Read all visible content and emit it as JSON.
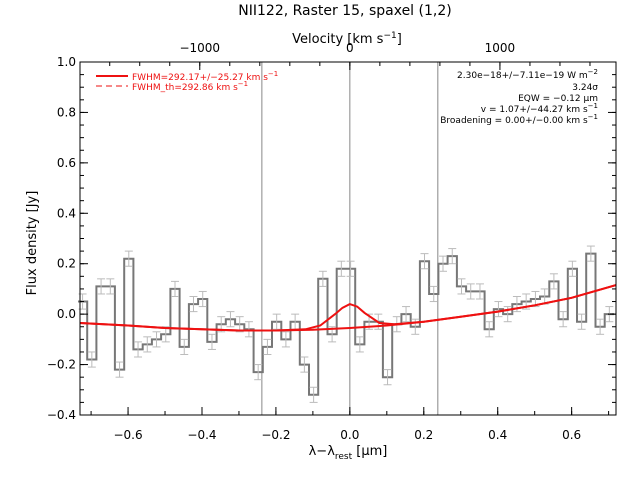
{
  "chart_data": {
    "type": "line",
    "title": "NII122, Raster 15, spaxel (1,2)",
    "xlabel": "λ−λ",
    "xlabel_sub": "rest",
    "xlabel_unit": " [μm]",
    "ylabel": "Flux density [Jy]",
    "top_axis_label": "Velocity [km s",
    "top_axis_label_sup": "−1",
    "top_axis_label_end": "]",
    "xlim": [
      -0.73,
      0.72
    ],
    "ylim": [
      -0.4,
      1.0
    ],
    "x_ticks": [
      -0.6,
      -0.4,
      -0.2,
      0.0,
      0.2,
      0.4,
      0.6
    ],
    "x_tick_labels": [
      "−0.6",
      "−0.4",
      "−0.2",
      "0.0",
      "0.2",
      "0.4",
      "0.6"
    ],
    "y_ticks": [
      -0.4,
      -0.2,
      0.0,
      0.2,
      0.4,
      0.6,
      0.8,
      1.0
    ],
    "y_tick_labels": [
      "−0.4",
      "−0.2",
      "0.0",
      "0.2",
      "0.4",
      "0.6",
      "0.8",
      "1.0"
    ],
    "top_ticks_velocity": [
      -1000,
      0,
      1000
    ],
    "top_tick_labels": [
      "−1000",
      "0",
      "1000"
    ],
    "top_scale_um_per_kms": 0.000406,
    "vertical_lines": [
      -0.238,
      0.0,
      0.238
    ],
    "legend": {
      "placement": "top-left",
      "entries": [
        {
          "label": "FWHM=292.17+/−25.27 km s",
          "sup": "−1",
          "style": "solid",
          "color": "#ee1111"
        },
        {
          "label": "FWHM_th=292.86 km s",
          "sup": "−1",
          "style": "dashed",
          "color": "#ee1111"
        }
      ]
    },
    "annotations": [
      {
        "text": "2.30e−18+/−7.11e−19 W m",
        "sup": "−2"
      },
      {
        "text": "3.24σ",
        "sup": ""
      },
      {
        "text": "EQW = −0.12 μm",
        "sup": ""
      },
      {
        "text": "v = 1.07+/−44.27 km s",
        "sup": "−1"
      },
      {
        "text": "Broadening = 0.00+/−0.00 km s",
        "sup": "−1"
      }
    ],
    "series": [
      {
        "name": "spectrum",
        "style": "steps",
        "color": "#777777",
        "x": [
          -0.723,
          -0.698,
          -0.673,
          -0.648,
          -0.623,
          -0.598,
          -0.573,
          -0.548,
          -0.523,
          -0.498,
          -0.473,
          -0.448,
          -0.423,
          -0.398,
          -0.373,
          -0.348,
          -0.323,
          -0.298,
          -0.273,
          -0.248,
          -0.223,
          -0.198,
          -0.173,
          -0.148,
          -0.123,
          -0.098,
          -0.073,
          -0.048,
          -0.023,
          0.002,
          0.027,
          0.052,
          0.077,
          0.102,
          0.127,
          0.152,
          0.177,
          0.202,
          0.227,
          0.252,
          0.277,
          0.302,
          0.327,
          0.352,
          0.377,
          0.402,
          0.427,
          0.452,
          0.477,
          0.502,
          0.527,
          0.552,
          0.577,
          0.602,
          0.627,
          0.652,
          0.677,
          0.702
        ],
        "values": [
          0.05,
          -0.18,
          0.11,
          0.11,
          -0.22,
          0.22,
          -0.14,
          -0.12,
          -0.1,
          -0.08,
          0.1,
          -0.13,
          0.04,
          0.06,
          -0.11,
          -0.04,
          -0.02,
          -0.04,
          -0.06,
          -0.23,
          -0.13,
          -0.03,
          -0.1,
          -0.03,
          -0.2,
          -0.32,
          0.14,
          -0.08,
          0.18,
          0.18,
          -0.12,
          -0.03,
          -0.03,
          -0.25,
          -0.04,
          0.0,
          -0.05,
          0.21,
          0.08,
          0.2,
          0.23,
          0.11,
          0.09,
          0.09,
          -0.06,
          0.02,
          0.0,
          0.04,
          0.05,
          0.06,
          0.07,
          0.13,
          -0.02,
          0.18,
          -0.03,
          0.24,
          -0.05,
          0.0
        ],
        "errors": [
          0.03,
          0.03,
          0.03,
          0.03,
          0.03,
          0.03,
          0.03,
          0.03,
          0.03,
          0.03,
          0.03,
          0.03,
          0.03,
          0.03,
          0.03,
          0.03,
          0.03,
          0.03,
          0.03,
          0.03,
          0.03,
          0.03,
          0.03,
          0.03,
          0.03,
          0.03,
          0.03,
          0.03,
          0.03,
          0.03,
          0.03,
          0.03,
          0.03,
          0.03,
          0.03,
          0.03,
          0.03,
          0.03,
          0.03,
          0.03,
          0.03,
          0.03,
          0.03,
          0.03,
          0.03,
          0.03,
          0.03,
          0.03,
          0.03,
          0.03,
          0.03,
          0.03,
          0.03,
          0.03,
          0.03,
          0.03,
          0.03,
          0.03
        ]
      },
      {
        "name": "fit",
        "style": "solid",
        "color": "#ee1111",
        "x": [
          -0.73,
          -0.6,
          -0.5,
          -0.4,
          -0.3,
          -0.2,
          -0.12,
          -0.08,
          -0.04,
          -0.02,
          0.0,
          0.02,
          0.04,
          0.08,
          0.12,
          0.2,
          0.3,
          0.4,
          0.5,
          0.6,
          0.72
        ],
        "values": [
          -0.035,
          -0.045,
          -0.055,
          -0.06,
          -0.065,
          -0.065,
          -0.06,
          -0.045,
          0.0,
          0.025,
          0.04,
          0.03,
          0.005,
          -0.035,
          -0.04,
          -0.03,
          -0.01,
          0.01,
          0.035,
          0.065,
          0.115
        ]
      },
      {
        "name": "fit_th",
        "style": "dashed",
        "color": "#ee1111",
        "x": [
          -0.73,
          -0.6,
          -0.5,
          -0.4,
          -0.3,
          -0.2,
          -0.12,
          -0.08,
          -0.04,
          -0.02,
          0.0,
          0.02,
          0.04,
          0.08,
          0.12,
          0.2,
          0.3,
          0.4,
          0.5,
          0.6,
          0.72
        ],
        "values": [
          -0.035,
          -0.045,
          -0.055,
          -0.06,
          -0.065,
          -0.065,
          -0.06,
          -0.045,
          0.0,
          0.025,
          0.04,
          0.03,
          0.005,
          -0.035,
          -0.04,
          -0.03,
          -0.01,
          0.01,
          0.035,
          0.065,
          0.115
        ]
      },
      {
        "name": "continuum",
        "style": "solid",
        "color": "#ee1111",
        "x": [
          -0.73,
          -0.6,
          -0.5,
          -0.4,
          -0.3,
          -0.2,
          -0.1,
          0.0,
          0.1,
          0.2,
          0.3,
          0.4,
          0.5,
          0.6,
          0.72
        ],
        "values": [
          -0.035,
          -0.045,
          -0.055,
          -0.06,
          -0.065,
          -0.065,
          -0.062,
          -0.055,
          -0.045,
          -0.03,
          -0.01,
          0.01,
          0.035,
          0.065,
          0.115
        ]
      }
    ]
  }
}
